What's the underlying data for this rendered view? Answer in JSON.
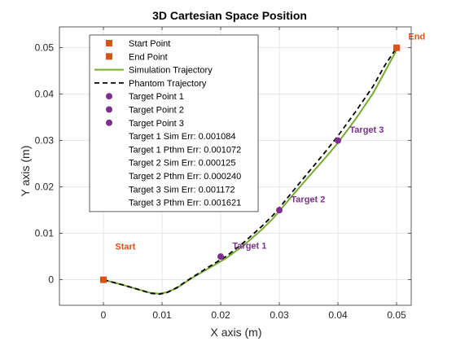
{
  "chart_data": {
    "type": "line",
    "title": "3D Cartesian Space Position",
    "xlabel": "X axis (m)",
    "ylabel": "Y axis (m)",
    "xlim": [
      -0.0075,
      0.0525
    ],
    "ylim": [
      -0.0055,
      0.0545
    ],
    "x_ticks": [
      0,
      0.01,
      0.02,
      0.03,
      0.04,
      0.05
    ],
    "x_tick_labels": [
      "0",
      "0.01",
      "0.02",
      "0.03",
      "0.04",
      "0.05"
    ],
    "y_ticks": [
      0,
      0.01,
      0.02,
      0.03,
      0.04,
      0.05
    ],
    "y_tick_labels": [
      "0",
      "0.01",
      "0.02",
      "0.03",
      "0.04",
      "0.05"
    ],
    "grid": true,
    "legend_position": "top-left",
    "series": [
      {
        "name": "Simulation Trajectory",
        "color": "#77ac30",
        "style": "solid",
        "x": [
          0,
          0.003,
          0.006,
          0.008,
          0.0095,
          0.0108,
          0.0125,
          0.015,
          0.018,
          0.021,
          0.024,
          0.027,
          0.029,
          0.03,
          0.032,
          0.035,
          0.038,
          0.04,
          0.043,
          0.046,
          0.048,
          0.05
        ],
        "y": [
          0,
          -0.001,
          -0.0021,
          -0.0028,
          -0.003,
          -0.0027,
          -0.0018,
          0.0003,
          0.0025,
          0.0047,
          0.0075,
          0.0108,
          0.0133,
          0.0148,
          0.0178,
          0.0222,
          0.0265,
          0.0295,
          0.0346,
          0.0402,
          0.0448,
          0.0495
        ]
      },
      {
        "name": "Phantom Trajectory",
        "color": "#000000",
        "style": "dashed",
        "x": [
          0,
          0.003,
          0.006,
          0.008,
          0.0095,
          0.0108,
          0.0125,
          0.015,
          0.018,
          0.021,
          0.024,
          0.027,
          0.029,
          0.03,
          0.032,
          0.035,
          0.038,
          0.04,
          0.043,
          0.046,
          0.048,
          0.05
        ],
        "y": [
          0,
          -0.001,
          -0.0021,
          -0.0029,
          -0.0031,
          -0.0028,
          -0.0017,
          0.0004,
          0.0028,
          0.0051,
          0.0081,
          0.0115,
          0.014,
          0.0155,
          0.0186,
          0.0232,
          0.0278,
          0.031,
          0.0362,
          0.0417,
          0.0462,
          0.05
        ]
      }
    ],
    "points": [
      {
        "name": "Start Point",
        "marker": "square",
        "color": "#d95319",
        "x": 0,
        "y": 0,
        "label": "Start",
        "label_dx": 0.002,
        "label_dy": 0.0065
      },
      {
        "name": "End Point",
        "marker": "square",
        "color": "#d95319",
        "x": 0.05,
        "y": 0.05,
        "label": "End",
        "label_dx": 0.002,
        "label_dy": 0.0018
      },
      {
        "name": "Target Point 1",
        "marker": "circle",
        "color": "#7e2f8e",
        "x": 0.02,
        "y": 0.005,
        "label": "Target 1",
        "label_dx": 0.002,
        "label_dy": 0.0017
      },
      {
        "name": "Target Point 2",
        "marker": "circle",
        "color": "#7e2f8e",
        "x": 0.03,
        "y": 0.015,
        "label": "Target 2",
        "label_dx": 0.002,
        "label_dy": 0.0017
      },
      {
        "name": "Target Point 3",
        "marker": "circle",
        "color": "#7e2f8e",
        "x": 0.04,
        "y": 0.03,
        "label": "Target 3",
        "label_dx": 0.002,
        "label_dy": 0.0017
      }
    ],
    "legend": [
      {
        "label": "Start Point",
        "symbol": "square",
        "color": "#d95319"
      },
      {
        "label": "End Point",
        "symbol": "square",
        "color": "#d95319"
      },
      {
        "label": "Simulation Trajectory",
        "symbol": "line-solid",
        "color": "#77ac30"
      },
      {
        "label": "Phantom Trajectory",
        "symbol": "line-dashed",
        "color": "#000000"
      },
      {
        "label": "Target Point 1",
        "symbol": "circle",
        "color": "#7e2f8e"
      },
      {
        "label": "Target Point 2",
        "symbol": "circle",
        "color": "#7e2f8e"
      },
      {
        "label": "Target Point 3",
        "symbol": "circle",
        "color": "#7e2f8e"
      },
      {
        "label": "Target 1 Sim Err: 0.001084",
        "symbol": "none",
        "color": ""
      },
      {
        "label": "Target 1 Pthm Err: 0.001072",
        "symbol": "none",
        "color": ""
      },
      {
        "label": "Target 2 Sim Err: 0.000125",
        "symbol": "none",
        "color": ""
      },
      {
        "label": "Target 2 Pthm Err: 0.000240",
        "symbol": "none",
        "color": ""
      },
      {
        "label": "Target 3 Sim Err: 0.001172",
        "symbol": "none",
        "color": ""
      },
      {
        "label": "Target 3 Pthm Err: 0.001621",
        "symbol": "none",
        "color": ""
      }
    ]
  }
}
